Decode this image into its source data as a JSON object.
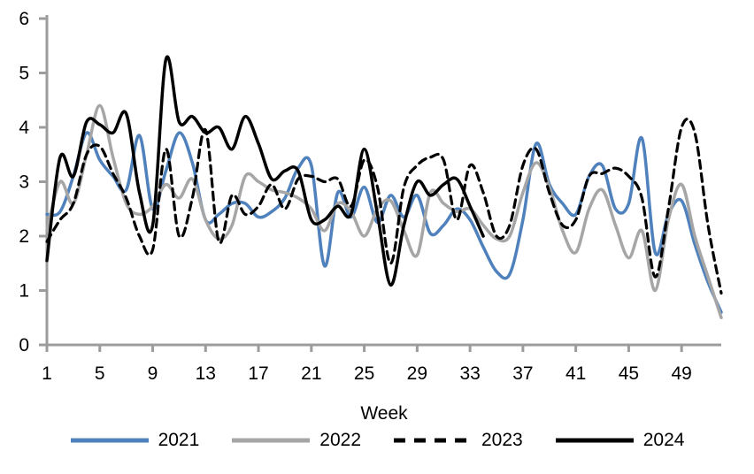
{
  "chart_data": {
    "type": "line",
    "title": "",
    "xlabel": "Week",
    "ylabel": "",
    "ylim": [
      0,
      6
    ],
    "y_ticks": [
      0,
      1,
      2,
      3,
      4,
      5,
      6
    ],
    "x_ticks": [
      1,
      5,
      9,
      13,
      17,
      21,
      25,
      29,
      33,
      37,
      41,
      45,
      49
    ],
    "x_range": [
      1,
      52
    ],
    "grid": false,
    "legend_position": "bottom",
    "axis_color": "#9c9c9c",
    "text_color": "#000000",
    "series": [
      {
        "name": "2021",
        "color": "#4f81bd",
        "style": "solid",
        "start_week": 1,
        "values": [
          2.4,
          2.45,
          3.1,
          3.9,
          3.4,
          3.1,
          2.85,
          3.85,
          2.5,
          3.2,
          3.9,
          3.35,
          2.3,
          2.4,
          2.6,
          2.6,
          2.35,
          2.45,
          2.7,
          3.25,
          3.3,
          1.45,
          2.8,
          2.35,
          2.9,
          2.25,
          2.75,
          2.35,
          2.75,
          2.05,
          2.2,
          2.5,
          2.3,
          1.8,
          1.35,
          1.3,
          2.3,
          3.7,
          2.95,
          2.6,
          2.4,
          3.1,
          3.3,
          2.5,
          2.6,
          3.8,
          1.7,
          2.4,
          2.65,
          1.85,
          1.15,
          0.6
        ]
      },
      {
        "name": "2022",
        "color": "#a6a6a6",
        "style": "solid",
        "start_week": 1,
        "values": [
          2.1,
          3.0,
          2.6,
          3.5,
          4.4,
          3.45,
          2.6,
          2.4,
          2.55,
          2.95,
          2.7,
          3.05,
          2.3,
          1.95,
          2.2,
          3.1,
          3.0,
          2.85,
          2.8,
          2.7,
          2.5,
          2.1,
          2.6,
          2.45,
          2.0,
          2.5,
          2.65,
          2.1,
          1.65,
          2.8,
          2.6,
          2.45,
          2.5,
          2.2,
          1.95,
          2.0,
          2.8,
          3.35,
          2.9,
          2.1,
          1.7,
          2.5,
          2.85,
          2.2,
          1.6,
          2.1,
          1.0,
          2.3,
          2.95,
          2.0,
          1.25,
          0.5
        ]
      },
      {
        "name": "2023",
        "color": "#000000",
        "style": "dashed",
        "start_week": 1,
        "values": [
          1.9,
          2.3,
          2.6,
          3.5,
          3.65,
          3.15,
          2.7,
          2.0,
          1.75,
          3.6,
          2.0,
          2.7,
          3.95,
          1.9,
          2.75,
          2.4,
          2.55,
          2.95,
          2.5,
          3.05,
          3.1,
          3.0,
          3.05,
          2.55,
          3.4,
          2.9,
          1.5,
          2.9,
          3.3,
          3.45,
          3.4,
          2.3,
          3.3,
          2.8,
          2.0,
          2.2,
          3.3,
          3.6,
          2.8,
          2.2,
          2.3,
          3.1,
          3.15,
          3.25,
          3.1,
          2.7,
          1.25,
          2.5,
          4.0,
          3.9,
          2.2,
          0.95
        ]
      },
      {
        "name": "2024",
        "color": "#000000",
        "style": "solid",
        "start_week": 1,
        "values": [
          1.55,
          3.45,
          3.1,
          4.1,
          4.05,
          3.9,
          4.25,
          2.8,
          2.2,
          5.25,
          4.1,
          4.2,
          3.9,
          4.0,
          3.6,
          4.2,
          3.7,
          3.05,
          3.2,
          3.2,
          2.3,
          2.3,
          2.55,
          2.4,
          3.6,
          2.4,
          1.1,
          2.2,
          3.0,
          2.75,
          2.95,
          3.05,
          2.55,
          2.0
        ]
      }
    ]
  }
}
